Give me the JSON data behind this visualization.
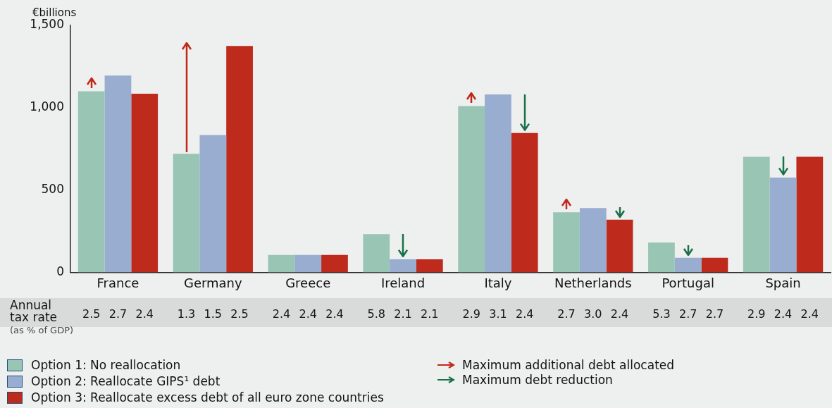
{
  "chart_data": {
    "type": "bar",
    "ylabel": "€billions",
    "categories": [
      "France",
      "Germany",
      "Greece",
      "Ireland",
      "Italy",
      "Netherlands",
      "Portugal",
      "Spain"
    ],
    "series": [
      {
        "name": "Option 1: No reallocation",
        "color": "#99c5b5",
        "values": [
          1100,
          720,
          105,
          232,
          1010,
          365,
          180,
          702
        ]
      },
      {
        "name": "Option 2: Reallocate GIPS¹ debt",
        "color": "#98adcf",
        "values": [
          1195,
          833,
          105,
          79,
          1080,
          390,
          88,
          575
        ]
      },
      {
        "name": "Option 3: Reallocate excess debt of all euro zone countries",
        "color": "#be2a1c",
        "values": [
          1085,
          1375,
          105,
          79,
          846,
          320,
          88,
          702
        ]
      }
    ],
    "ylim": [
      0,
      1500
    ],
    "yticks": [
      0,
      500,
      {
        "value": 1000,
        "label": "1,000"
      },
      {
        "value": 1500,
        "label": "1,500"
      }
    ],
    "grid": false,
    "legend": "bottom",
    "annotations": [
      "Annual tax rate",
      "(as % of GDP)",
      "Maximum additional debt allocated",
      "Maximum debt reduction",
      "2.5",
      "2.7",
      "2.4",
      "1.3",
      "1.5",
      "2.5",
      "2.4",
      "2.4",
      "2.4",
      "5.8",
      "2.1",
      "2.1",
      "2.9",
      "3.1",
      "2.4",
      "2.7",
      "3.0",
      "2.4",
      "5.3",
      "2.7",
      "2.7",
      "2.9",
      "2.4",
      "2.4"
    ]
  }
}
